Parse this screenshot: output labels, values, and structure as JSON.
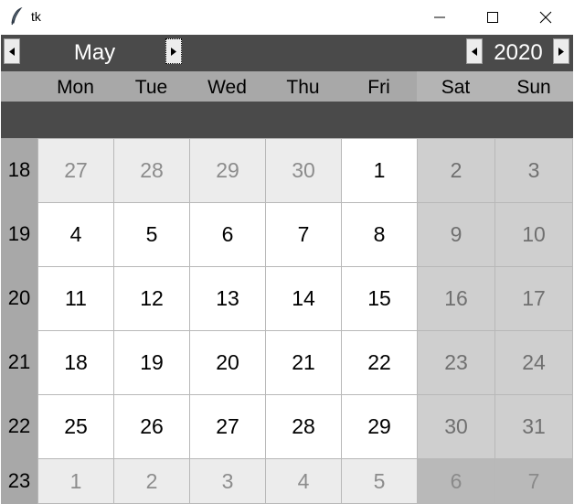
{
  "window": {
    "title": "tk"
  },
  "header": {
    "month": "May",
    "year": "2020"
  },
  "day_names": [
    "Mon",
    "Tue",
    "Wed",
    "Thu",
    "Fri",
    "Sat",
    "Sun"
  ],
  "weeks": [
    {
      "num": "18",
      "days": [
        {
          "d": "27",
          "other": true
        },
        {
          "d": "28",
          "other": true
        },
        {
          "d": "29",
          "other": true
        },
        {
          "d": "30",
          "other": true
        },
        {
          "d": "1",
          "other": false
        },
        {
          "d": "2",
          "other": false
        },
        {
          "d": "3",
          "other": false
        }
      ]
    },
    {
      "num": "19",
      "days": [
        {
          "d": "4",
          "other": false
        },
        {
          "d": "5",
          "other": false
        },
        {
          "d": "6",
          "other": false
        },
        {
          "d": "7",
          "other": false
        },
        {
          "d": "8",
          "other": false
        },
        {
          "d": "9",
          "other": false
        },
        {
          "d": "10",
          "other": false
        }
      ]
    },
    {
      "num": "20",
      "days": [
        {
          "d": "11",
          "other": false
        },
        {
          "d": "12",
          "other": false
        },
        {
          "d": "13",
          "other": false
        },
        {
          "d": "14",
          "other": false
        },
        {
          "d": "15",
          "other": false
        },
        {
          "d": "16",
          "other": false
        },
        {
          "d": "17",
          "other": false
        }
      ]
    },
    {
      "num": "21",
      "days": [
        {
          "d": "18",
          "other": false
        },
        {
          "d": "19",
          "other": false
        },
        {
          "d": "20",
          "other": false
        },
        {
          "d": "21",
          "other": false
        },
        {
          "d": "22",
          "other": false
        },
        {
          "d": "23",
          "other": false
        },
        {
          "d": "24",
          "other": false
        }
      ]
    },
    {
      "num": "22",
      "days": [
        {
          "d": "25",
          "other": false
        },
        {
          "d": "26",
          "other": false
        },
        {
          "d": "27",
          "other": false
        },
        {
          "d": "28",
          "other": false
        },
        {
          "d": "29",
          "other": false
        },
        {
          "d": "30",
          "other": false
        },
        {
          "d": "31",
          "other": false
        }
      ]
    },
    {
      "num": "23",
      "days": [
        {
          "d": "1",
          "other": true
        },
        {
          "d": "2",
          "other": true
        },
        {
          "d": "3",
          "other": true
        },
        {
          "d": "4",
          "other": true
        },
        {
          "d": "5",
          "other": true
        },
        {
          "d": "6",
          "other": true
        },
        {
          "d": "7",
          "other": true
        }
      ]
    }
  ],
  "colors": {
    "header_bg": "#4a4a4a",
    "header_text": "#ffffff",
    "weekday_bg": "#ffffff",
    "weekend_bg": "#cfcfcf",
    "other_month_bg": "#ececec",
    "label_bg": "#a8a8a8"
  },
  "icons": [
    "feather-icon",
    "minimize-icon",
    "maximize-icon",
    "close-icon",
    "arrow-left-icon",
    "arrow-right-icon"
  ]
}
